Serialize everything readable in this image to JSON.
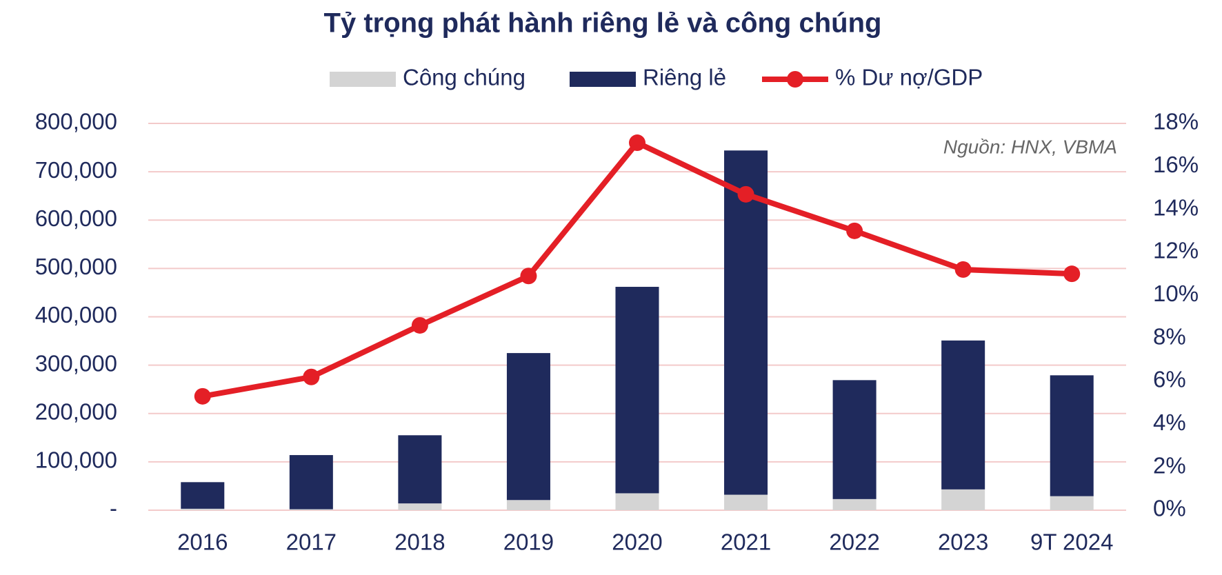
{
  "chart_data": {
    "type": "bar-line",
    "title": "Tỷ trọng phát hành riêng lẻ và công chúng",
    "annotation": "Nguồn: HNX, VBMA",
    "categories": [
      "2016",
      "2017",
      "2018",
      "2019",
      "2020",
      "2021",
      "2022",
      "2023",
      "9T 2024"
    ],
    "series": [
      {
        "name": "Công chúng",
        "type": "bar",
        "color": "#d4d4d4",
        "values": [
          3000,
          2000,
          14000,
          21000,
          35000,
          32000,
          23000,
          43000,
          29000
        ]
      },
      {
        "name": "Riêng lẻ",
        "type": "bar",
        "color": "#1f2a5c",
        "values": [
          55000,
          112000,
          141000,
          304000,
          427000,
          712000,
          246000,
          308000,
          250000
        ]
      },
      {
        "name": "% Dư nợ/GDP",
        "type": "line",
        "axis": "y2",
        "color": "#e41f26",
        "values": [
          5.3,
          6.2,
          8.6,
          10.9,
          17.1,
          14.7,
          13.0,
          11.2,
          11.0
        ]
      }
    ],
    "stacked": true,
    "ylim": [
      0,
      800000
    ],
    "yticks": [
      {
        "value": 0,
        "label": "-"
      },
      {
        "value": 100000,
        "label": "100,000"
      },
      {
        "value": 200000,
        "label": "200,000"
      },
      {
        "value": 300000,
        "label": "300,000"
      },
      {
        "value": 400000,
        "label": "400,000"
      },
      {
        "value": 500000,
        "label": "500,000"
      },
      {
        "value": 600000,
        "label": "600,000"
      },
      {
        "value": 700000,
        "label": "700,000"
      },
      {
        "value": 800000,
        "label": "800,000"
      }
    ],
    "y2lim": [
      0,
      18
    ],
    "y2ticks": [
      {
        "value": 0,
        "label": "0%"
      },
      {
        "value": 2,
        "label": "2%"
      },
      {
        "value": 4,
        "label": "4%"
      },
      {
        "value": 6,
        "label": "6%"
      },
      {
        "value": 8,
        "label": "8%"
      },
      {
        "value": 10,
        "label": "10%"
      },
      {
        "value": 12,
        "label": "12%"
      },
      {
        "value": 14,
        "label": "14%"
      },
      {
        "value": 16,
        "label": "16%"
      },
      {
        "value": 18,
        "label": "18%"
      }
    ],
    "grid": true,
    "legend": "top"
  }
}
